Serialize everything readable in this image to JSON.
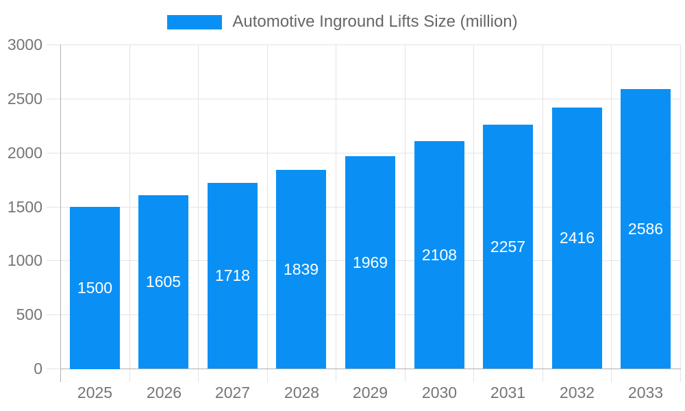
{
  "legend": {
    "label": "Automotive Inground Lifts Size (million)"
  },
  "chart_data": {
    "type": "bar",
    "title": "Automotive Inground Lifts Size (million)",
    "series_name": "Automotive Inground Lifts Size (million)",
    "categories": [
      "2025",
      "2026",
      "2027",
      "2028",
      "2029",
      "2030",
      "2031",
      "2032",
      "2033"
    ],
    "values": [
      1500,
      1605,
      1718,
      1839,
      1969,
      2108,
      2257,
      2416,
      2586
    ],
    "xlabel": "",
    "ylabel": "",
    "ylim": [
      0,
      3000
    ],
    "yticks": [
      0,
      500,
      1000,
      1500,
      2000,
      2500,
      3000
    ],
    "grid": true,
    "legend_position": "top-center",
    "value_label_position": "inside-center",
    "colors": {
      "bar": "#0a90f5",
      "value_label": "#ffffff",
      "axis_text": "#757575",
      "legend_text": "#666666",
      "gridline": "#e3e3e3",
      "axis_line": "#b0b0b0",
      "background": "#ffffff"
    }
  }
}
